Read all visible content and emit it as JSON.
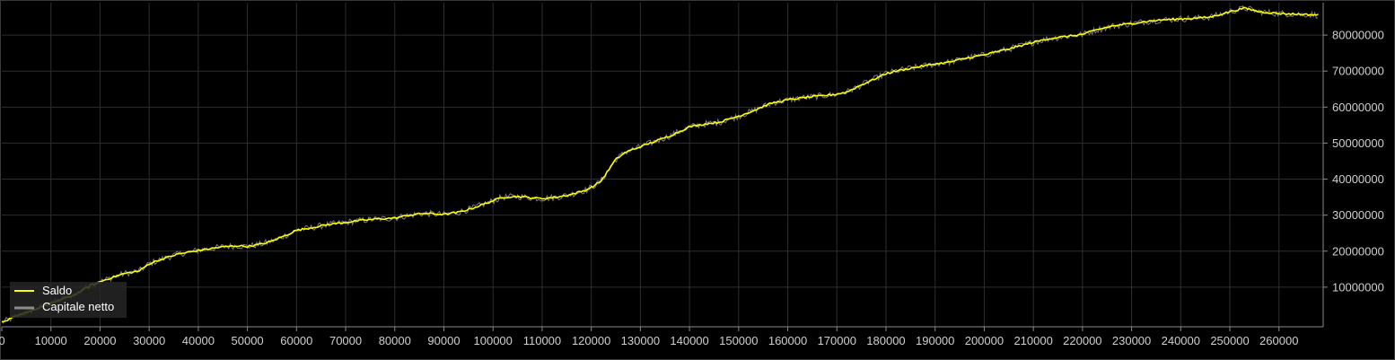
{
  "chart_data": {
    "type": "line",
    "title": "",
    "xlabel": "",
    "ylabel": "",
    "xlim": [
      0,
      269000
    ],
    "ylim": [
      -1000000,
      89000000
    ],
    "x_ticks": [
      "0",
      "10000",
      "20000",
      "30000",
      "40000",
      "50000",
      "60000",
      "70000",
      "80000",
      "90000",
      "100000",
      "110000",
      "120000",
      "130000",
      "140000",
      "150000",
      "160000",
      "170000",
      "180000",
      "190000",
      "200000",
      "210000",
      "220000",
      "230000",
      "240000",
      "250000",
      "260000"
    ],
    "y_ticks": [
      "10000000",
      "20000000",
      "30000000",
      "40000000",
      "50000000",
      "60000000",
      "70000000",
      "80000000"
    ],
    "grid": true,
    "legend_position": "bottom-left",
    "colors": {
      "background": "#000000",
      "grid": "#2e2e2e",
      "axis": "#8a8a8a",
      "saldo": "#ffff00",
      "capitale": "#8c8c8c"
    },
    "series": [
      {
        "name": "Saldo",
        "x": [
          0,
          5000,
          10000,
          15000,
          18000,
          20000,
          22000,
          25000,
          28000,
          30000,
          33000,
          36000,
          40000,
          43000,
          45000,
          48000,
          50000,
          53000,
          55000,
          58000,
          60000,
          63000,
          66000,
          70000,
          73000,
          76000,
          80000,
          83000,
          86000,
          90000,
          93000,
          96000,
          100000,
          102000,
          105000,
          108000,
          110000,
          113000,
          116000,
          119000,
          121000,
          122000,
          123000,
          124000,
          125000,
          127000,
          130000,
          133000,
          136000,
          140000,
          143000,
          146000,
          150000,
          153000,
          155000,
          157000,
          160000,
          163000,
          166000,
          170000,
          172000,
          174000,
          176000,
          178000,
          180000,
          182000,
          185000,
          188000,
          190000,
          193000,
          196000,
          200000,
          203000,
          206000,
          210000,
          213000,
          216000,
          220000,
          223000,
          226000,
          230000,
          233000,
          236000,
          240000,
          243000,
          246000,
          250000,
          253000,
          256000,
          260000,
          264000,
          268000
        ],
        "values": [
          200000,
          3000000,
          5500000,
          8000000,
          10500000,
          11500000,
          12500000,
          13800000,
          14500000,
          16500000,
          18000000,
          19200000,
          20200000,
          20800000,
          21200000,
          21500000,
          21300000,
          22000000,
          22800000,
          24500000,
          25800000,
          26500000,
          27300000,
          28000000,
          28500000,
          28900000,
          29200000,
          30000000,
          30500000,
          30200000,
          30800000,
          32000000,
          34000000,
          35000000,
          35200000,
          34800000,
          34600000,
          35000000,
          35800000,
          37000000,
          38500000,
          39500000,
          41500000,
          43500000,
          45500000,
          47500000,
          49000000,
          50500000,
          52000000,
          54500000,
          55300000,
          55800000,
          57500000,
          59000000,
          60200000,
          61200000,
          62000000,
          62600000,
          63000000,
          63600000,
          64200000,
          65500000,
          66800000,
          68000000,
          69300000,
          70000000,
          70800000,
          71500000,
          72000000,
          72500000,
          73500000,
          74500000,
          75500000,
          76500000,
          78000000,
          79000000,
          79500000,
          80200000,
          81500000,
          82500000,
          83200000,
          83800000,
          84200000,
          84500000,
          84700000,
          85000000,
          86500000,
          87500000,
          86500000,
          86000000,
          85800000,
          85600000
        ]
      },
      {
        "name": "Capitale netto"
      }
    ]
  },
  "legend": {
    "items": [
      "Saldo",
      "Capitale netto"
    ]
  }
}
